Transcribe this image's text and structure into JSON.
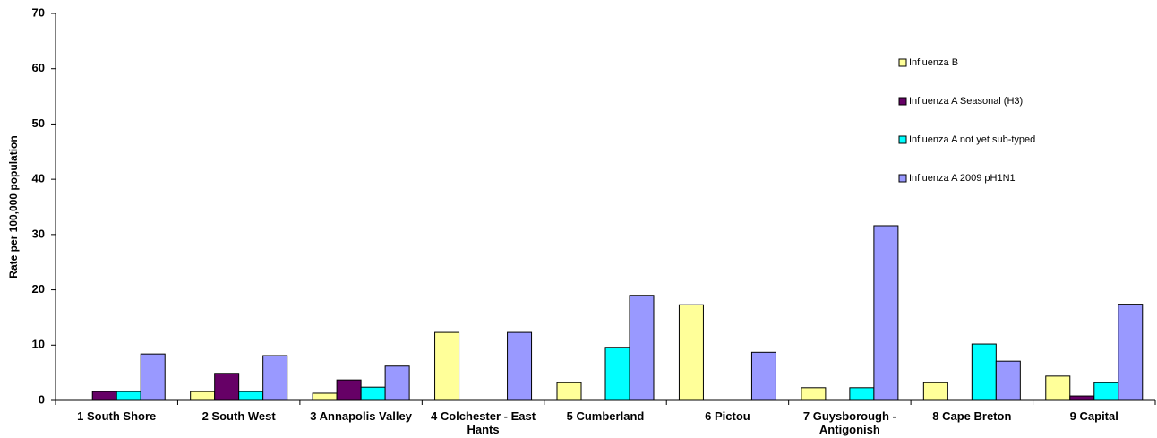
{
  "chart_data": {
    "type": "bar",
    "y_label": "Rate per 100,000 population",
    "categories": [
      "1 South Shore",
      "2 South West",
      "3 Annapolis Valley",
      "4 Colchester - East Hants",
      "5 Cumberland",
      "6 Pictou",
      "7 Guysborough - Antigonish",
      "8 Cape Breton",
      "9 Capital"
    ],
    "series": [
      {
        "name": "Influenza B",
        "color": "#ffff99",
        "values": [
          0,
          1.6,
          1.3,
          12.3,
          3.2,
          17.3,
          2.3,
          3.2,
          4.4
        ]
      },
      {
        "name": "Influenza A Seasonal (H3)",
        "color": "#660066",
        "values": [
          1.6,
          4.9,
          3.7,
          0,
          0,
          0,
          0,
          0,
          0.8
        ]
      },
      {
        "name": "Influenza A not yet sub-typed",
        "color": "#00ffff",
        "values": [
          1.6,
          1.6,
          2.4,
          0,
          9.6,
          0,
          2.3,
          10.2,
          3.2
        ]
      },
      {
        "name": "Influenza A 2009 pH1N1",
        "color": "#9999ff",
        "values": [
          8.4,
          8.1,
          6.2,
          12.3,
          19.0,
          8.7,
          31.6,
          7.1,
          17.4
        ]
      }
    ],
    "ylim": [
      0,
      70
    ],
    "yticks": [
      0,
      10,
      20,
      30,
      40,
      50,
      60,
      70
    ],
    "grid": false,
    "legend": "right"
  }
}
